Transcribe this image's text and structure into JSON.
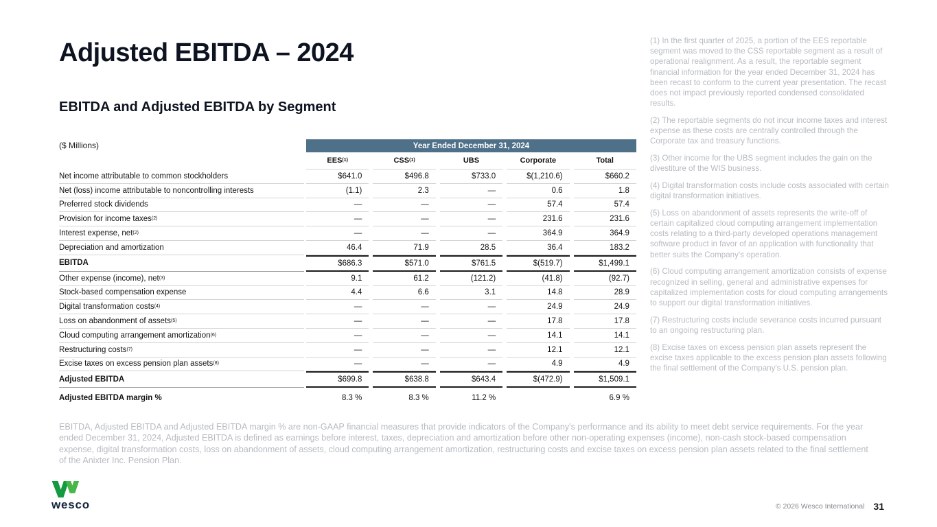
{
  "slide": {
    "title": "Adjusted EBITDA – 2024",
    "subtitle": "EBITDA and Adjusted EBITDA by Segment",
    "units_label": "($ Millions)"
  },
  "table": {
    "period_header": "Year Ended December 31, 2024",
    "columns": [
      {
        "label": "EES",
        "sup": "(1)"
      },
      {
        "label": "CSS",
        "sup": "(1)"
      },
      {
        "label": "UBS",
        "sup": ""
      },
      {
        "label": "Corporate",
        "sup": ""
      },
      {
        "label": "Total",
        "sup": ""
      }
    ],
    "rows": [
      {
        "label": "Net income attributable to common stockholders",
        "sup": "",
        "style": "normal",
        "values": [
          "$641.0",
          "$496.8",
          "$733.0",
          "$(1,210.6)",
          "$660.2"
        ]
      },
      {
        "label": "Net (loss) income attributable to noncontrolling interests",
        "sup": "",
        "style": "normal",
        "values": [
          "(1.1)",
          "2.3",
          "—",
          "0.6",
          "1.8"
        ]
      },
      {
        "label": "Preferred stock dividends",
        "sup": "",
        "style": "normal",
        "values": [
          "—",
          "—",
          "—",
          "57.4",
          "57.4"
        ]
      },
      {
        "label": "Provision for income taxes",
        "sup": "(2)",
        "style": "normal",
        "values": [
          "—",
          "—",
          "—",
          "231.6",
          "231.6"
        ]
      },
      {
        "label": "Interest expense, net",
        "sup": "(2)",
        "style": "normal",
        "values": [
          "—",
          "—",
          "—",
          "364.9",
          "364.9"
        ]
      },
      {
        "label": "Depreciation and amortization",
        "sup": "",
        "style": "normal",
        "values": [
          "46.4",
          "71.9",
          "28.5",
          "36.4",
          "183.2"
        ]
      },
      {
        "label": "EBITDA",
        "sup": "",
        "style": "subtotal",
        "values": [
          "$686.3",
          "$571.0",
          "$761.5",
          "$(519.7)",
          "$1,499.1"
        ]
      },
      {
        "label": "Other expense (income), net ",
        "sup": "(3)",
        "style": "normal",
        "values": [
          "9.1",
          "61.2",
          "(121.2)",
          "(41.8)",
          "(92.7)"
        ]
      },
      {
        "label": "Stock-based compensation expense",
        "sup": "",
        "style": "normal",
        "values": [
          "4.4",
          "6.6",
          "3.1",
          "14.8",
          "28.9"
        ]
      },
      {
        "label": "Digital transformation costs",
        "sup": "(4)",
        "style": "normal",
        "values": [
          "—",
          "—",
          "—",
          "24.9",
          "24.9"
        ]
      },
      {
        "label": "Loss on abandonment of assets",
        "sup": "(5)",
        "style": "normal",
        "values": [
          "—",
          "—",
          "—",
          "17.8",
          "17.8"
        ]
      },
      {
        "label": "Cloud computing arrangement amortization",
        "sup": "(6)",
        "style": "normal",
        "values": [
          "—",
          "—",
          "—",
          "14.1",
          "14.1"
        ]
      },
      {
        "label": "Restructuring costs",
        "sup": "(7)",
        "style": "normal",
        "values": [
          "—",
          "—",
          "—",
          "12.1",
          "12.1"
        ]
      },
      {
        "label": "Excise taxes on excess pension plan assets",
        "sup": "(8)",
        "style": "normal",
        "values": [
          "—",
          "—",
          "—",
          "4.9",
          "4.9"
        ]
      },
      {
        "label": "Adjusted EBITDA",
        "sup": "",
        "style": "subtotal",
        "values": [
          "$699.8",
          "$638.8",
          "$643.4",
          "$(472.9)",
          "$1,509.1"
        ]
      },
      {
        "label": "Adjusted EBITDA margin %",
        "sup": "",
        "style": "margin",
        "values": [
          "8.3 %",
          "8.3 %",
          "11.2 %",
          "",
          "6.9 %"
        ]
      }
    ]
  },
  "footnotes": [
    {
      "num": "(1)",
      "text": "In the first quarter of 2025, a portion of the EES reportable segment was moved to the CSS reportable segment as a result of operational realignment. As a result, the reportable segment financial information for the year ended December 31, 2024 has been recast to conform to the current year presentation. The recast does not impact previously reported condensed consolidated results."
    },
    {
      "num": "(2)",
      "text": "The reportable segments do not incur income taxes and interest expense as these costs are centrally controlled through the Corporate tax and treasury functions."
    },
    {
      "num": "(3)",
      "text": "Other income for the UBS segment includes the gain on the divestiture of the WIS business."
    },
    {
      "num": "(4)",
      "text": "Digital transformation costs include costs associated with certain digital transformation initiatives."
    },
    {
      "num": "(5)",
      "text": "Loss on abandonment of assets represents the write-off of certain capitalized cloud computing arrangement implementation costs relating to a third-party developed operations management software product in favor of an application with functionality that better suits the Company's operation."
    },
    {
      "num": "(6)",
      "text": "Cloud computing arrangement amortization consists of expense recognized in selling, general and administrative expenses for capitalized implementation costs for cloud computing arrangements to support our digital transformation initiatives."
    },
    {
      "num": "(7)",
      "text": "Restructuring costs include severance costs incurred pursuant to an ongoing restructuring plan."
    },
    {
      "num": "(8)",
      "text": "Excise taxes on excess pension plan assets represent the excise taxes applicable to the excess pension plan assets following the final settlement of the Company's U.S. pension plan."
    }
  ],
  "disclaimer": "EBITDA, Adjusted EBITDA and Adjusted EBITDA margin % are non-GAAP financial measures that provide indicators of the Company's performance and its ability to meet debt service requirements. For the year ended December 31, 2024, Adjusted EBITDA is defined as earnings before interest, taxes, depreciation and amortization before other non-operating expenses (income), non-cash stock-based compensation expense, digital transformation costs, loss on abandonment of assets, cloud computing arrangement amortization, restructuring costs and excise taxes on excess pension plan assets related to the final settlement of the Anixter Inc. Pension Plan.",
  "footer": {
    "logo_text": "wesco",
    "copyright": "© 2026 Wesco International",
    "page_number": "31"
  },
  "colors": {
    "header_bar": "#4e7089",
    "logo_green_dark": "#149a40",
    "logo_green_light": "#47b749",
    "logo_text_navy": "#16243d"
  }
}
